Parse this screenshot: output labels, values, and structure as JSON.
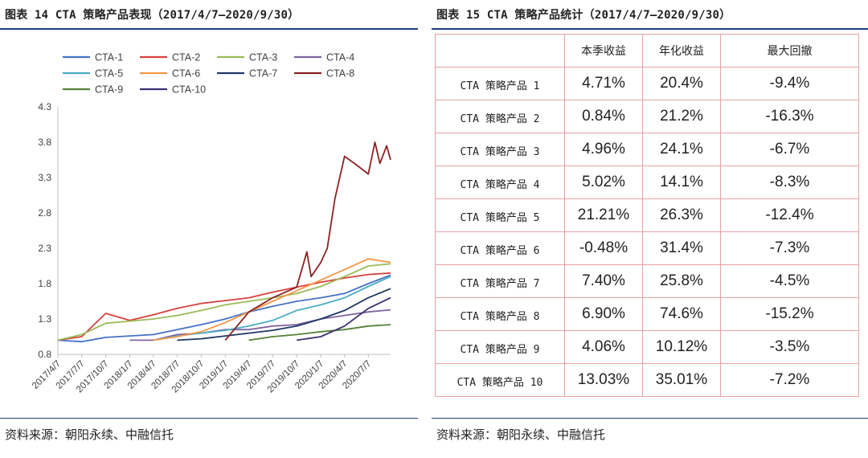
{
  "left": {
    "title": "图表 14  CTA 策略产品表现（2017/4/7—2020/9/30）",
    "source": "资料来源：朝阳永续、中融信托"
  },
  "right": {
    "title": "图表 15  CTA 策略产品统计（2017/4/7—2020/9/30）",
    "source": "资料来源：朝阳永续、中融信托",
    "table": {
      "headers": [
        "",
        "本季收益",
        "年化收益",
        "最大回撤"
      ],
      "rows": [
        {
          "name": "CTA 策略产品 1",
          "quarter": "4.71%",
          "annual": "20.4%",
          "drawdown": "-9.4%"
        },
        {
          "name": "CTA 策略产品 2",
          "quarter": "0.84%",
          "annual": "21.2%",
          "drawdown": "-16.3%"
        },
        {
          "name": "CTA 策略产品 3",
          "quarter": "4.96%",
          "annual": "24.1%",
          "drawdown": "-6.7%"
        },
        {
          "name": "CTA 策略产品 4",
          "quarter": "5.02%",
          "annual": "14.1%",
          "drawdown": "-8.3%"
        },
        {
          "name": "CTA 策略产品 5",
          "quarter": "21.21%",
          "annual": "26.3%",
          "drawdown": "-12.4%"
        },
        {
          "name": "CTA 策略产品 6",
          "quarter": "-0.48%",
          "annual": "31.4%",
          "drawdown": "-7.3%"
        },
        {
          "name": "CTA 策略产品 7",
          "quarter": "7.40%",
          "annual": "25.8%",
          "drawdown": "-4.5%"
        },
        {
          "name": "CTA 策略产品 8",
          "quarter": "6.90%",
          "annual": "74.6%",
          "drawdown": "-15.2%"
        },
        {
          "name": "CTA 策略产品 9",
          "quarter": "4.06%",
          "annual": "10.12%",
          "drawdown": "-3.5%"
        },
        {
          "name": "CTA 策略产品 10",
          "quarter": "13.03%",
          "annual": "35.01%",
          "drawdown": "-7.2%"
        }
      ]
    }
  },
  "chart_data": {
    "type": "line",
    "title": "",
    "xlabel": "",
    "ylabel": "",
    "x_ticks": [
      "2017/4/7",
      "2017/7/7",
      "2017/10/7",
      "2018/1/7",
      "2018/4/7",
      "2018/7/7",
      "2018/10/7",
      "2019/1/7",
      "2019/4/7",
      "2019/7/7",
      "2019/10/7",
      "2020/1/7",
      "2020/4/7",
      "2020/7/7"
    ],
    "y_ticks": [
      "0.8",
      "1.3",
      "1.8",
      "2.3",
      "2.8",
      "3.3",
      "3.8",
      "4.3"
    ],
    "ylim": [
      0.8,
      4.3
    ],
    "grid": false,
    "legend_position": "top",
    "series": [
      {
        "name": "CTA-1",
        "color": "#4472c4",
        "points": [
          [
            "2017/4/7",
            1.0
          ],
          [
            "2017/7/7",
            0.98
          ],
          [
            "2017/10/7",
            1.04
          ],
          [
            "2018/1/7",
            1.06
          ],
          [
            "2018/4/7",
            1.08
          ],
          [
            "2018/7/7",
            1.15
          ],
          [
            "2018/10/7",
            1.22
          ],
          [
            "2019/1/7",
            1.3
          ],
          [
            "2019/4/7",
            1.4
          ],
          [
            "2019/7/7",
            1.48
          ],
          [
            "2019/10/7",
            1.55
          ],
          [
            "2020/1/7",
            1.6
          ],
          [
            "2020/4/7",
            1.66
          ],
          [
            "2020/7/7",
            1.8
          ],
          [
            "2020/9/30",
            1.92
          ]
        ]
      },
      {
        "name": "CTA-2",
        "color": "#d9413c",
        "points": [
          [
            "2017/4/7",
            1.0
          ],
          [
            "2017/7/7",
            1.05
          ],
          [
            "2017/10/7",
            1.38
          ],
          [
            "2018/1/7",
            1.28
          ],
          [
            "2018/4/7",
            1.36
          ],
          [
            "2018/7/7",
            1.45
          ],
          [
            "2018/10/7",
            1.52
          ],
          [
            "2019/1/7",
            1.56
          ],
          [
            "2019/4/7",
            1.6
          ],
          [
            "2019/7/7",
            1.68
          ],
          [
            "2019/10/7",
            1.75
          ],
          [
            "2020/1/7",
            1.82
          ],
          [
            "2020/4/7",
            1.88
          ],
          [
            "2020/7/7",
            1.93
          ],
          [
            "2020/9/30",
            1.95
          ]
        ]
      },
      {
        "name": "CTA-3",
        "color": "#9bbb59",
        "points": [
          [
            "2017/4/7",
            1.0
          ],
          [
            "2017/7/7",
            1.08
          ],
          [
            "2017/10/7",
            1.24
          ],
          [
            "2018/1/7",
            1.27
          ],
          [
            "2018/4/7",
            1.3
          ],
          [
            "2018/7/7",
            1.35
          ],
          [
            "2018/10/7",
            1.42
          ],
          [
            "2019/1/7",
            1.5
          ],
          [
            "2019/4/7",
            1.55
          ],
          [
            "2019/7/7",
            1.6
          ],
          [
            "2019/10/7",
            1.66
          ],
          [
            "2020/1/7",
            1.76
          ],
          [
            "2020/4/7",
            1.9
          ],
          [
            "2020/7/7",
            2.05
          ],
          [
            "2020/9/30",
            2.08
          ]
        ]
      },
      {
        "name": "CTA-4",
        "color": "#8064a2",
        "points": [
          [
            "2018/1/7",
            1.0
          ],
          [
            "2018/4/7",
            1.0
          ],
          [
            "2018/7/7",
            1.08
          ],
          [
            "2018/10/7",
            1.1
          ],
          [
            "2019/1/7",
            1.15
          ],
          [
            "2019/4/7",
            1.15
          ],
          [
            "2019/7/7",
            1.2
          ],
          [
            "2019/10/7",
            1.22
          ],
          [
            "2020/1/7",
            1.3
          ],
          [
            "2020/4/7",
            1.35
          ],
          [
            "2020/7/7",
            1.4
          ],
          [
            "2020/9/30",
            1.43
          ]
        ]
      },
      {
        "name": "CTA-5",
        "color": "#4bacc6",
        "points": [
          [
            "2018/4/7",
            1.0
          ],
          [
            "2018/7/7",
            1.06
          ],
          [
            "2018/10/7",
            1.1
          ],
          [
            "2019/1/7",
            1.14
          ],
          [
            "2019/4/7",
            1.2
          ],
          [
            "2019/7/7",
            1.28
          ],
          [
            "2019/10/7",
            1.42
          ],
          [
            "2020/1/7",
            1.5
          ],
          [
            "2020/4/7",
            1.6
          ],
          [
            "2020/7/7",
            1.76
          ],
          [
            "2020/9/30",
            1.9
          ]
        ]
      },
      {
        "name": "CTA-6",
        "color": "#f79646",
        "points": [
          [
            "2018/4/7",
            1.0
          ],
          [
            "2018/7/7",
            1.05
          ],
          [
            "2018/10/7",
            1.12
          ],
          [
            "2019/1/7",
            1.25
          ],
          [
            "2019/4/7",
            1.4
          ],
          [
            "2019/7/7",
            1.55
          ],
          [
            "2019/10/7",
            1.7
          ],
          [
            "2020/1/7",
            1.85
          ],
          [
            "2020/4/7",
            2.0
          ],
          [
            "2020/7/7",
            2.15
          ],
          [
            "2020/9/30",
            2.1
          ]
        ]
      },
      {
        "name": "CTA-7",
        "color": "#1f3864",
        "points": [
          [
            "2018/7/7",
            1.0
          ],
          [
            "2018/10/7",
            1.02
          ],
          [
            "2019/1/7",
            1.06
          ],
          [
            "2019/4/7",
            1.1
          ],
          [
            "2019/7/7",
            1.14
          ],
          [
            "2019/10/7",
            1.2
          ],
          [
            "2020/1/7",
            1.3
          ],
          [
            "2020/4/7",
            1.42
          ],
          [
            "2020/7/7",
            1.6
          ],
          [
            "2020/9/30",
            1.73
          ]
        ]
      },
      {
        "name": "CTA-8",
        "color": "#8b2323",
        "points": [
          [
            "2019/1/7",
            1.0
          ],
          [
            "2019/4/7",
            1.4
          ],
          [
            "2019/7/7",
            1.6
          ],
          [
            "2019/10/7",
            1.75
          ],
          [
            "2019/11/15",
            2.25
          ],
          [
            "2019/12/1",
            1.9
          ],
          [
            "2020/1/7",
            2.1
          ],
          [
            "2020/2/1",
            2.3
          ],
          [
            "2020/3/1",
            3.0
          ],
          [
            "2020/4/7",
            3.6
          ],
          [
            "2020/5/15",
            3.5
          ],
          [
            "2020/7/7",
            3.35
          ],
          [
            "2020/8/1",
            3.8
          ],
          [
            "2020/8/20",
            3.5
          ],
          [
            "2020/9/15",
            3.75
          ],
          [
            "2020/9/30",
            3.55
          ]
        ]
      },
      {
        "name": "CTA-9",
        "color": "#548235",
        "points": [
          [
            "2019/4/7",
            1.0
          ],
          [
            "2019/7/7",
            1.05
          ],
          [
            "2019/10/7",
            1.08
          ],
          [
            "2020/1/7",
            1.12
          ],
          [
            "2020/4/7",
            1.15
          ],
          [
            "2020/7/7",
            1.2
          ],
          [
            "2020/9/30",
            1.22
          ]
        ]
      },
      {
        "name": "CTA-10",
        "color": "#3e2f73",
        "points": [
          [
            "2019/10/7",
            1.0
          ],
          [
            "2020/1/7",
            1.05
          ],
          [
            "2020/4/7",
            1.2
          ],
          [
            "2020/7/7",
            1.45
          ],
          [
            "2020/9/30",
            1.6
          ]
        ]
      }
    ]
  }
}
